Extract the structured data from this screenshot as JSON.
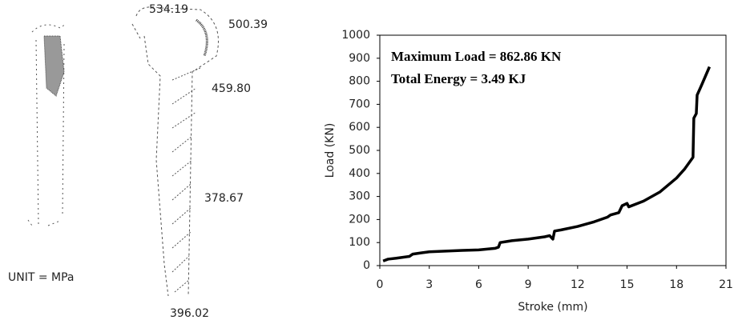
{
  "stress_panel": {
    "labels": [
      "534.19",
      "500.39",
      "459.80",
      "378.67",
      "396.02"
    ],
    "unit": "UNIT = MPa"
  },
  "chart_data": {
    "type": "line",
    "x_label": "Stroke (mm)",
    "y_label": "Load (KN)",
    "annotations": [
      "Maximum Load = 862.86 KN",
      "Total Energy = 3.49 KJ"
    ],
    "xlim": [
      0,
      21
    ],
    "xticks": [
      0,
      3,
      6,
      9,
      12,
      15,
      18,
      21
    ],
    "ylim": [
      0,
      1000
    ],
    "yticks": [
      0,
      100,
      200,
      300,
      400,
      500,
      600,
      700,
      800,
      900,
      1000
    ],
    "grid": false,
    "series": [
      {
        "color": "#000000",
        "x": [
          0.2,
          0.5,
          1,
          1.8,
          2,
          2.5,
          3,
          4,
          5,
          6,
          7,
          7.2,
          7.3,
          8,
          9,
          10,
          10.3,
          10.5,
          10.6,
          11,
          12,
          13,
          13.8,
          14,
          14.5,
          14.7,
          15,
          15.1,
          16,
          17,
          18,
          18.5,
          19,
          19.05,
          19.2,
          19.25,
          19.5,
          20
        ],
        "values": [
          20,
          28,
          32,
          40,
          50,
          55,
          60,
          63,
          66,
          68,
          75,
          80,
          100,
          108,
          115,
          125,
          130,
          115,
          150,
          155,
          170,
          190,
          210,
          220,
          230,
          260,
          270,
          255,
          280,
          320,
          380,
          420,
          470,
          640,
          660,
          740,
          780,
          862.86
        ]
      }
    ]
  }
}
